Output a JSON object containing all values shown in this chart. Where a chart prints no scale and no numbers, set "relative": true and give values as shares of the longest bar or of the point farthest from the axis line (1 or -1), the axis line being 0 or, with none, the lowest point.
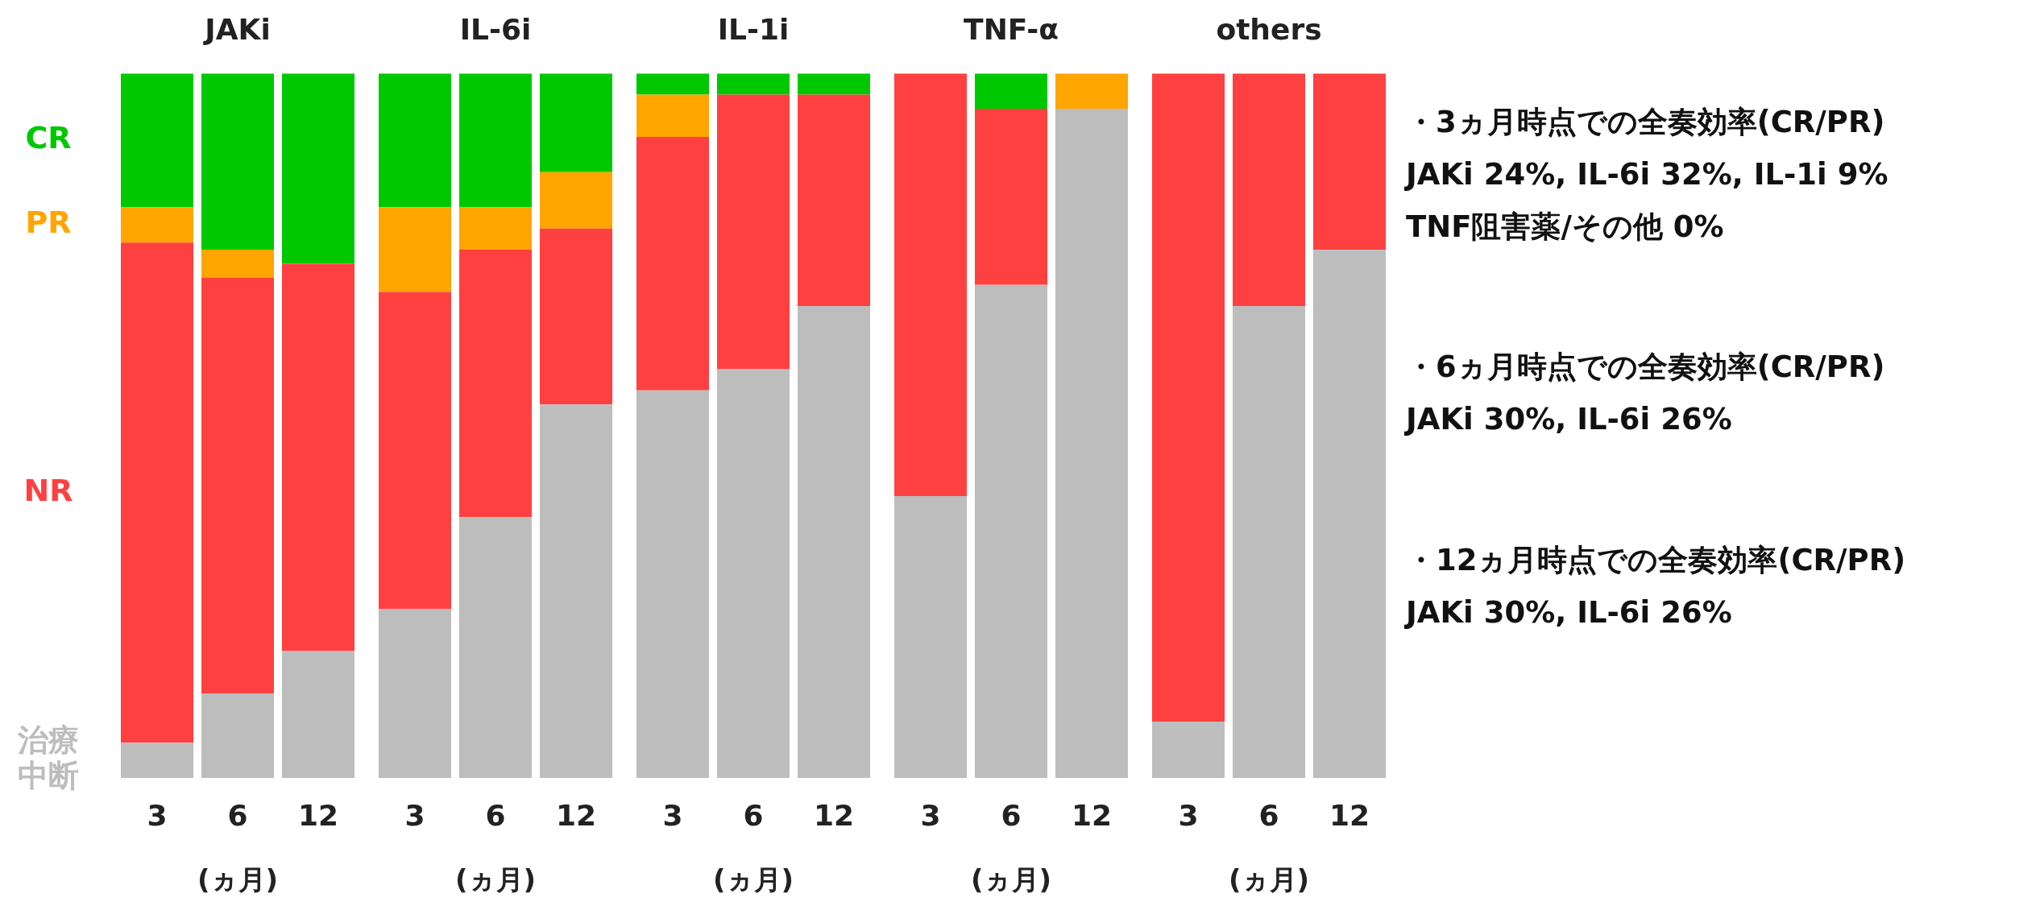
{
  "chart_data": [
    {
      "type": "bar",
      "title": "JAKi",
      "categories": [
        "3",
        "6",
        "12"
      ],
      "xlabel": "(ヵ月)",
      "stacked": true,
      "relative": true,
      "legend": false,
      "series": [
        {
          "name": "治療中断",
          "color": "#bdbdbd",
          "values": [
            0.05,
            0.12,
            0.18
          ]
        },
        {
          "name": "NR",
          "color": "#ff4040",
          "values": [
            0.71,
            0.59,
            0.55
          ]
        },
        {
          "name": "PR",
          "color": "#ffa500",
          "values": [
            0.05,
            0.04,
            0
          ]
        },
        {
          "name": "CR",
          "color": "#00c800",
          "values": [
            0.19,
            0.25,
            0.27
          ]
        }
      ]
    },
    {
      "type": "bar",
      "title": "IL-6i",
      "categories": [
        "3",
        "6",
        "12"
      ],
      "xlabel": "(ヵ月)",
      "stacked": true,
      "relative": true,
      "legend": false,
      "series": [
        {
          "color": "#bdbdbd",
          "values": [
            0.24,
            0.37,
            0.53
          ]
        },
        {
          "color": "#ff4040",
          "values": [
            0.45,
            0.38,
            0.25
          ]
        },
        {
          "color": "#ffa500",
          "values": [
            0.12,
            0.06,
            0.08
          ]
        },
        {
          "color": "#00c800",
          "values": [
            0.19,
            0.19,
            0.14
          ]
        }
      ]
    },
    {
      "type": "bar",
      "title": "IL-1i",
      "categories": [
        "3",
        "6",
        "12"
      ],
      "xlabel": "(ヵ月)",
      "stacked": true,
      "relative": true,
      "legend": false,
      "series": [
        {
          "color": "#bdbdbd",
          "values": [
            0.55,
            0.58,
            0.67
          ]
        },
        {
          "color": "#ff4040",
          "values": [
            0.36,
            0.39,
            0.3
          ]
        },
        {
          "color": "#ffa500",
          "values": [
            0.06,
            0,
            0
          ]
        },
        {
          "color": "#00c800",
          "values": [
            0.03,
            0.03,
            0.03
          ]
        }
      ]
    },
    {
      "type": "bar",
      "title": "TNF-α",
      "categories": [
        "3",
        "6",
        "12"
      ],
      "xlabel": "(ヵ月)",
      "stacked": true,
      "relative": true,
      "legend": false,
      "series": [
        {
          "color": "#bdbdbd",
          "values": [
            0.4,
            0.7,
            0.95
          ]
        },
        {
          "color": "#ff4040",
          "values": [
            0.6,
            0.25,
            0
          ]
        },
        {
          "color": "#ffa500",
          "values": [
            0,
            0,
            0.05
          ]
        },
        {
          "color": "#00c800",
          "values": [
            0,
            0.05,
            0
          ]
        }
      ]
    },
    {
      "type": "bar",
      "title": "others",
      "categories": [
        "3",
        "6",
        "12"
      ],
      "xlabel": "(ヵ月)",
      "stacked": true,
      "relative": true,
      "legend": false,
      "series": [
        {
          "color": "#bdbdbd",
          "values": [
            0.08,
            0.67,
            0.75
          ]
        },
        {
          "color": "#ff4040",
          "values": [
            0.92,
            0.33,
            0.25
          ]
        },
        {
          "color": "#ffa500",
          "values": [
            0,
            0,
            0
          ]
        },
        {
          "color": "#00c800",
          "values": [
            0,
            0,
            0
          ]
        }
      ]
    },
    {
      "type": "other",
      "annotations": [
        "・3ヵ月時点での全奏効率(CR/PR)\nJAKi 24%, IL-6i 32%, IL-1i 9%\nTNF阻害薬/その他 0%",
        "・6ヵ月時点での全奏効率(CR/PR)\nJAKi 30%, IL-6i 26%",
        "・12ヵ月時点での全奏効率(CR/PR)\nJAKi 30%, IL-6i 26%"
      ]
    }
  ]
}
